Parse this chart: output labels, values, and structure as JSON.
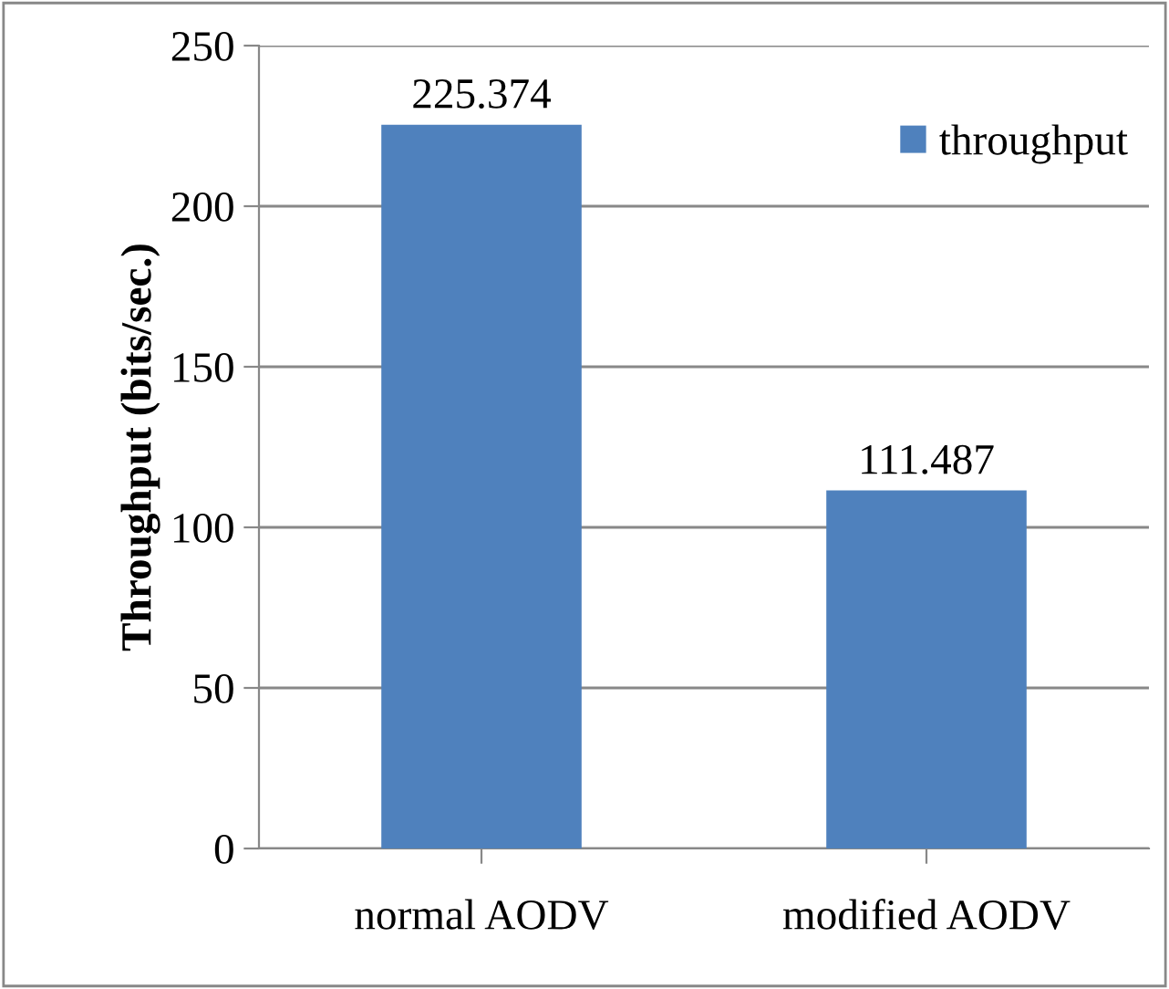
{
  "chart_data": {
    "type": "bar",
    "ylabel": "Throughput (bits/sec.)",
    "categories": [
      "normal AODV",
      "modified AODV"
    ],
    "series": [
      {
        "name": "throughput",
        "color": "#4f81bd",
        "values": [
          225.374,
          111.487
        ]
      }
    ],
    "ylim": [
      0,
      250
    ],
    "yticks": [
      0,
      50,
      100,
      150,
      200,
      250
    ],
    "grid": "y",
    "legend": "top right",
    "data_labels": true
  }
}
